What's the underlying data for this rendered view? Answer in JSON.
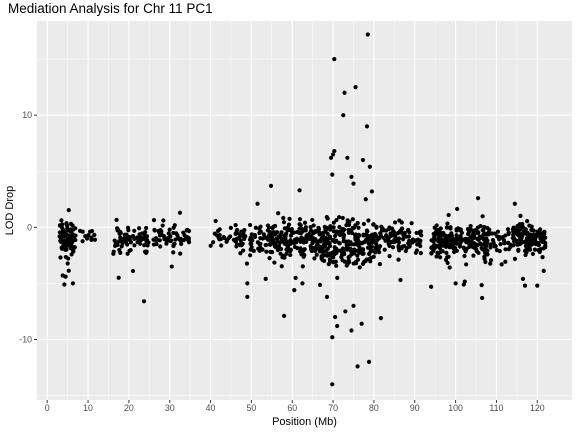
{
  "chart_data": {
    "type": "scatter",
    "title": "Mediation Analysis for Chr 11 PC1",
    "xlabel": "Position (Mb)",
    "ylabel": "LOD Drop",
    "xlim": [
      -2.5,
      128.5
    ],
    "ylim": [
      -15.4,
      18.4
    ],
    "x_ticks": [
      0,
      10,
      20,
      30,
      40,
      50,
      60,
      70,
      80,
      90,
      100,
      110,
      120
    ],
    "y_ticks": [
      -10,
      0,
      10
    ],
    "grid": true,
    "legend": "none",
    "colors": {
      "panel": "#ebebeb",
      "grid": "#ffffff",
      "point": "#000000",
      "tick_text": "#4d4d4d"
    },
    "bulk_clusters": [
      {
        "x_range": [
          3,
          7
        ],
        "y_center": -1.0,
        "y_spread": 0.9,
        "n": 90
      },
      {
        "x_range": [
          8,
          12
        ],
        "y_center": -0.9,
        "y_spread": 0.7,
        "n": 12
      },
      {
        "x_range": [
          16,
          25
        ],
        "y_center": -1.0,
        "y_spread": 0.8,
        "n": 70
      },
      {
        "x_range": [
          26,
          35
        ],
        "y_center": -0.8,
        "y_spread": 0.7,
        "n": 65
      },
      {
        "x_range": [
          40,
          46
        ],
        "y_center": -0.9,
        "y_spread": 0.5,
        "n": 20
      },
      {
        "x_range": [
          46,
          57
        ],
        "y_center": -1.0,
        "y_spread": 1.0,
        "n": 110
      },
      {
        "x_range": [
          57,
          67
        ],
        "y_center": -1.3,
        "y_spread": 1.2,
        "n": 150
      },
      {
        "x_range": [
          67,
          80
        ],
        "y_center": -1.3,
        "y_spread": 1.4,
        "n": 220
      },
      {
        "x_range": [
          80,
          92
        ],
        "y_center": -1.0,
        "y_spread": 0.9,
        "n": 110
      },
      {
        "x_range": [
          94,
          108
        ],
        "y_center": -1.2,
        "y_spread": 1.0,
        "n": 230
      },
      {
        "x_range": [
          108,
          114
        ],
        "y_center": -1.0,
        "y_spread": 0.8,
        "n": 40
      },
      {
        "x_range": [
          114,
          122
        ],
        "y_center": -1.1,
        "y_spread": 1.0,
        "n": 130
      }
    ],
    "notable_points": [
      {
        "x": 70.3,
        "y": 15.0
      },
      {
        "x": 78.5,
        "y": 17.2
      },
      {
        "x": 72.8,
        "y": 12.0
      },
      {
        "x": 75.5,
        "y": 12.5
      },
      {
        "x": 72.5,
        "y": 10.0
      },
      {
        "x": 78.3,
        "y": 9.0
      },
      {
        "x": 70.0,
        "y": 6.5
      },
      {
        "x": 70.3,
        "y": 6.8
      },
      {
        "x": 69.5,
        "y": 6.2
      },
      {
        "x": 73.5,
        "y": 6.2
      },
      {
        "x": 77.3,
        "y": 6.0
      },
      {
        "x": 79.0,
        "y": 5.4
      },
      {
        "x": 74.5,
        "y": 4.5
      },
      {
        "x": 75.0,
        "y": 3.9
      },
      {
        "x": 69.8,
        "y": 4.7
      },
      {
        "x": 54.8,
        "y": 3.7
      },
      {
        "x": 61.8,
        "y": 3.3
      },
      {
        "x": 105.5,
        "y": 2.6
      },
      {
        "x": 114.5,
        "y": 2.1
      },
      {
        "x": 32.5,
        "y": 1.3
      },
      {
        "x": 51.5,
        "y": 2.1
      },
      {
        "x": 79.5,
        "y": 3.2
      },
      {
        "x": 78.0,
        "y": 2.5
      },
      {
        "x": 69.8,
        "y": -14.0
      },
      {
        "x": 76.0,
        "y": -12.4
      },
      {
        "x": 78.8,
        "y": -12.0
      },
      {
        "x": 69.8,
        "y": -9.8
      },
      {
        "x": 74.5,
        "y": -9.2
      },
      {
        "x": 71.0,
        "y": -8.8
      },
      {
        "x": 77.0,
        "y": -8.6
      },
      {
        "x": 81.7,
        "y": -8.1
      },
      {
        "x": 58.0,
        "y": -7.9
      },
      {
        "x": 70.5,
        "y": -8.0
      },
      {
        "x": 73.0,
        "y": -7.5
      },
      {
        "x": 75.0,
        "y": -7.0
      },
      {
        "x": 68.5,
        "y": -6.2
      },
      {
        "x": 23.7,
        "y": -6.6
      },
      {
        "x": 49.0,
        "y": -6.2
      },
      {
        "x": 60.5,
        "y": -5.6
      },
      {
        "x": 62.5,
        "y": -5.0
      },
      {
        "x": 106.5,
        "y": -6.3
      },
      {
        "x": 4.2,
        "y": -5.1
      },
      {
        "x": 6.3,
        "y": -5.0
      },
      {
        "x": 117.0,
        "y": -5.2
      },
      {
        "x": 120.0,
        "y": -5.2
      },
      {
        "x": 3.8,
        "y": -4.3
      },
      {
        "x": 4.5,
        "y": -4.4
      },
      {
        "x": 17.5,
        "y": -4.5
      },
      {
        "x": 21.0,
        "y": -3.9
      },
      {
        "x": 30.5,
        "y": -3.5
      },
      {
        "x": 49.0,
        "y": -5.0
      },
      {
        "x": 53.5,
        "y": -4.6
      },
      {
        "x": 94.0,
        "y": -5.3
      },
      {
        "x": 86.5,
        "y": -4.7
      },
      {
        "x": 100.0,
        "y": -5.0
      },
      {
        "x": 102.0,
        "y": -5.1
      },
      {
        "x": 116.5,
        "y": -4.6
      }
    ]
  }
}
